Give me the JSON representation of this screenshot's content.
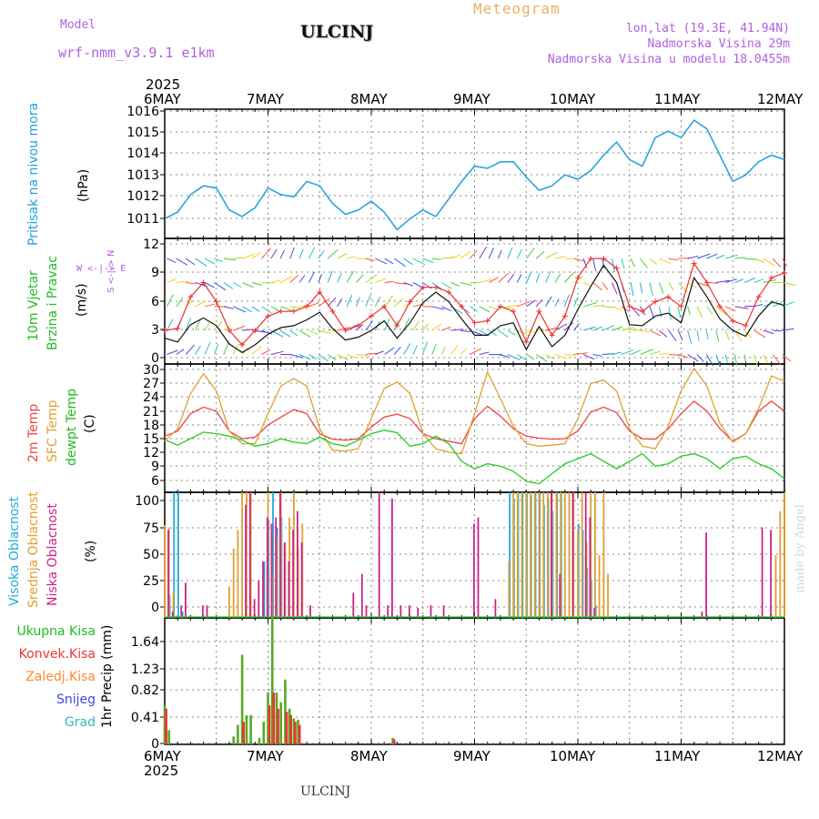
{
  "header": {
    "model_label": "Model",
    "model_name": "wrf-nmm_v3.9.1 e1km",
    "title": "ULCINJ",
    "meteogram": "Meteogram",
    "lonlat": "lon,lat (19.3E, 41.94N)",
    "elevation": "Nadmorska Visina 29m",
    "model_elevation": "Nadmorska Visina u modelu 18.0455m"
  },
  "dates": {
    "year": "2025",
    "days": [
      "6MAY",
      "7MAY",
      "8MAY",
      "9MAY",
      "10MAY",
      "11MAY",
      "12MAY"
    ]
  },
  "labels": {
    "pressure": {
      "name": "Pritisak na nivou mora",
      "unit": "(hPa)"
    },
    "wind": {
      "name1": "10m Vjetar",
      "name2": "Brzina i Pravac",
      "unit": "(m/s)",
      "compass": "W <-|-> E",
      "compass_vertical": "S <-|-> N"
    },
    "temp": {
      "t2m": "2m Temp",
      "sfc": "SFC Temp",
      "dew": "dewpt Temp",
      "unit": "(C)"
    },
    "cloud": {
      "high": "Visoka Oblacnost",
      "mid": "Srednja Oblacnost",
      "low": "Niska Oblacnost",
      "unit": "(%)"
    },
    "precip": {
      "total": "Ukupna Kisa",
      "conv": "Konvek.Kisa",
      "frz": "Zaledj.Kisa",
      "snow": "Snijeg",
      "hail": "Grad",
      "unit": "1hr Precip (mm)"
    },
    "footer": "ULCINJ",
    "madeby": "made by Angel"
  },
  "colors": {
    "pressure": "#1ea0e0",
    "wind_speed": "#111111",
    "wind_gust": "#ee3030",
    "t2m": "#ee4444",
    "sfc": "#e0a030",
    "dew": "#22cc22",
    "cloud_high": "#22aadd",
    "cloud_mid": "#e0a030",
    "cloud_low": "#cc2288",
    "precip_total": "#55aa22",
    "precip_conv": "#ee3333",
    "precip_frz": "#ff8833",
    "precip_snow": "#4444dd",
    "precip_hail": "#33bbbb",
    "label_wind": "#22bb22",
    "label_compass": "#b060e0"
  },
  "chart_data": [
    {
      "type": "line",
      "name": "pressure",
      "x_unit": "hours since 6MAY 00UTC",
      "ylim": [
        1010.2,
        1016.1
      ],
      "yticks": [
        "1011",
        "1012",
        "1013",
        "1014",
        "1015",
        "1016"
      ],
      "series": [
        {
          "name": "Pritisak na nivou mora",
          "x": [
            0,
            3,
            6,
            9,
            12,
            15,
            18,
            21,
            24,
            27,
            30,
            33,
            36,
            39,
            42,
            45,
            48,
            51,
            54,
            57,
            60,
            63,
            66,
            69,
            72,
            75,
            78,
            81,
            84,
            87,
            90,
            93,
            96,
            99,
            102,
            105,
            108,
            111,
            114,
            117,
            120,
            123,
            126,
            129,
            132,
            135,
            138,
            141,
            144
          ],
          "values": [
            1011.1,
            1011.4,
            1012.2,
            1012.6,
            1012.5,
            1011.5,
            1011.2,
            1011.6,
            1012.5,
            1012.2,
            1012.1,
            1012.8,
            1012.6,
            1011.8,
            1011.3,
            1011.5,
            1011.9,
            1011.4,
            1010.6,
            1011.1,
            1011.5,
            1011.2,
            1012.0,
            1012.8,
            1013.5,
            1013.4,
            1013.7,
            1013.7,
            1013.0,
            1012.4,
            1012.6,
            1013.1,
            1012.9,
            1013.3,
            1014.0,
            1014.6,
            1013.8,
            1013.5,
            1014.8,
            1015.1,
            1014.8,
            1015.6,
            1015.2,
            1014.0,
            1012.8,
            1013.1,
            1013.7,
            1014.0,
            1013.8
          ]
        }
      ]
    },
    {
      "type": "line",
      "name": "wind",
      "x_unit": "hours since 6MAY 00UTC",
      "ylim": [
        -0.5,
        12.6
      ],
      "yticks": [
        "0",
        "3",
        "6",
        "9",
        "12"
      ],
      "series": [
        {
          "name": "speed",
          "x": [
            0,
            3,
            6,
            9,
            12,
            15,
            18,
            21,
            24,
            27,
            30,
            33,
            36,
            39,
            42,
            45,
            48,
            51,
            54,
            57,
            60,
            63,
            66,
            69,
            72,
            75,
            78,
            81,
            84,
            87,
            90,
            93,
            96,
            99,
            102,
            105,
            108,
            111,
            114,
            117,
            120,
            123,
            126,
            129,
            132,
            135,
            138,
            141,
            144
          ],
          "values": [
            2.2,
            1.8,
            3.6,
            4.3,
            3.5,
            1.6,
            0.7,
            1.5,
            2.6,
            3.3,
            3.5,
            4.1,
            4.9,
            3.2,
            2.0,
            2.3,
            3.0,
            4.0,
            2.2,
            3.8,
            5.9,
            7.0,
            6.0,
            4.2,
            2.5,
            2.5,
            3.5,
            3.8,
            1.0,
            3.4,
            1.3,
            2.5,
            5.2,
            7.6,
            9.8,
            8.0,
            3.6,
            3.5,
            4.5,
            4.8,
            3.8,
            8.5,
            6.5,
            4.2,
            3.0,
            2.4,
            4.5,
            6.0,
            5.6
          ]
        },
        {
          "name": "gust",
          "x": [
            0,
            3,
            6,
            9,
            12,
            15,
            18,
            21,
            24,
            27,
            30,
            33,
            36,
            39,
            42,
            45,
            48,
            51,
            54,
            57,
            60,
            63,
            66,
            69,
            72,
            75,
            78,
            81,
            84,
            87,
            90,
            93,
            96,
            99,
            102,
            105,
            108,
            111,
            114,
            117,
            120,
            123,
            126,
            129,
            132,
            135,
            138,
            141,
            144
          ],
          "values": [
            3.0,
            3.2,
            6.5,
            8.0,
            6.0,
            3.0,
            1.5,
            3.0,
            4.5,
            5.0,
            5.0,
            5.5,
            7.0,
            5.0,
            3.0,
            3.5,
            4.5,
            5.5,
            3.5,
            6.0,
            7.5,
            7.5,
            7.0,
            5.5,
            3.8,
            4.0,
            5.5,
            5.0,
            1.8,
            5.0,
            2.5,
            4.5,
            8.5,
            10.5,
            10.5,
            9.5,
            5.5,
            5.0,
            6.0,
            6.5,
            5.5,
            10.0,
            8.0,
            5.5,
            4.0,
            3.5,
            6.5,
            8.5,
            9.0
          ]
        }
      ]
    },
    {
      "type": "line",
      "name": "temperature",
      "x_unit": "hours since 6MAY 00UTC",
      "ylim": [
        4.8,
        30.4
      ],
      "yticks": [
        "6",
        "9",
        "12",
        "15",
        "18",
        "21",
        "24",
        "27",
        "30"
      ],
      "series": [
        {
          "name": "2m Temp",
          "x": [
            0,
            3,
            6,
            9,
            12,
            15,
            18,
            21,
            24,
            27,
            30,
            33,
            36,
            39,
            42,
            45,
            48,
            51,
            54,
            57,
            60,
            63,
            66,
            69,
            72,
            75,
            78,
            81,
            84,
            87,
            90,
            93,
            96,
            99,
            102,
            105,
            108,
            111,
            114,
            117,
            120,
            123,
            126,
            129,
            132,
            135,
            138,
            141,
            144
          ],
          "values": [
            16.0,
            17.0,
            20.5,
            21.8,
            21.0,
            17.0,
            15.5,
            15.8,
            18.2,
            19.8,
            21.3,
            20.5,
            16.5,
            15.4,
            15.2,
            15.5,
            17.8,
            19.8,
            20.4,
            19.5,
            16.5,
            15.5,
            15.0,
            14.5,
            19.5,
            22.0,
            20.0,
            17.5,
            16.0,
            15.6,
            15.4,
            15.5,
            17.0,
            20.8,
            21.8,
            20.7,
            17.0,
            15.5,
            15.4,
            17.5,
            20.5,
            23.0,
            21.0,
            17.5,
            15.0,
            16.5,
            21.0,
            23.0,
            21.0
          ]
        },
        {
          "name": "SFC Temp",
          "x": [
            0,
            3,
            6,
            9,
            12,
            15,
            18,
            21,
            24,
            27,
            30,
            33,
            36,
            39,
            42,
            45,
            48,
            51,
            54,
            57,
            60,
            63,
            66,
            69,
            72,
            75,
            78,
            81,
            84,
            87,
            90,
            93,
            96,
            99,
            102,
            105,
            108,
            111,
            114,
            117,
            120,
            123,
            126,
            129,
            132,
            135,
            138,
            141,
            144
          ],
          "values": [
            15.0,
            17.5,
            24.5,
            28.5,
            25.0,
            17.0,
            14.5,
            14.5,
            20.5,
            26.0,
            27.5,
            26.0,
            17.5,
            13.2,
            13.0,
            13.5,
            19.5,
            25.5,
            26.8,
            24.5,
            16.5,
            13.5,
            12.8,
            12.5,
            20.5,
            28.8,
            23.5,
            18.0,
            14.5,
            14.0,
            14.2,
            14.5,
            19.5,
            26.5,
            27.2,
            25.0,
            17.5,
            14.0,
            13.5,
            18.0,
            25.0,
            29.5,
            26.0,
            18.5,
            14.8,
            16.5,
            21.5,
            28.0,
            27.0
          ]
        },
        {
          "name": "dewpt Temp",
          "x": [
            0,
            3,
            6,
            9,
            12,
            15,
            18,
            21,
            24,
            27,
            30,
            33,
            36,
            39,
            42,
            45,
            48,
            51,
            54,
            57,
            60,
            63,
            66,
            69,
            72,
            75,
            78,
            81,
            84,
            87,
            90,
            93,
            96,
            99,
            102,
            105,
            108,
            111,
            114,
            117,
            120,
            123,
            126,
            129,
            132,
            135,
            138,
            141,
            144
          ],
          "values": [
            15.3,
            14.2,
            15.5,
            16.8,
            16.5,
            16.0,
            15.2,
            14.0,
            14.5,
            15.5,
            14.8,
            14.5,
            15.8,
            14.5,
            14.0,
            15.2,
            16.5,
            17.2,
            16.7,
            14.0,
            14.5,
            16.0,
            14.5,
            11.0,
            9.5,
            10.5,
            10.0,
            9.0,
            7.0,
            6.5,
            8.5,
            10.5,
            11.5,
            12.5,
            11.0,
            9.5,
            11.0,
            12.5,
            10.0,
            10.5,
            12.0,
            12.5,
            11.5,
            9.5,
            11.5,
            12.0,
            10.5,
            9.5,
            7.5
          ]
        }
      ]
    },
    {
      "type": "bar",
      "name": "clouds",
      "x_unit": "hours since 6MAY 00UTC",
      "ylim": [
        0,
        100
      ],
      "yticks": [
        "0",
        "25",
        "50",
        "75",
        "100"
      ],
      "series": [
        {
          "name": "Visoka Oblacnost",
          "x": [
            1,
            2,
            3,
            4,
            23,
            24,
            25,
            26,
            27,
            80,
            81,
            82,
            83,
            84,
            85,
            86,
            87,
            88,
            89,
            90,
            91,
            92,
            96,
            97,
            98,
            99,
            100
          ],
          "values": [
            18,
            100,
            100,
            5,
            45,
            78,
            100,
            72,
            80,
            100,
            95,
            100,
            100,
            100,
            98,
            100,
            100,
            90,
            95,
            85,
            100,
            100,
            75,
            70,
            40,
            30,
            10
          ]
        },
        {
          "name": "Srednja Oblacnost",
          "x": [
            0,
            1,
            2,
            15,
            16,
            17,
            18,
            19,
            20,
            24,
            25,
            26,
            27,
            28,
            29,
            30,
            31,
            32,
            80,
            81,
            82,
            83,
            84,
            85,
            86,
            87,
            88,
            89,
            90,
            91,
            92,
            93,
            94,
            95,
            96,
            97,
            98,
            99,
            100,
            101,
            102,
            103,
            142,
            143,
            144
          ],
          "values": [
            74,
            72,
            20,
            25,
            55,
            70,
            100,
            100,
            100,
            100,
            35,
            65,
            100,
            60,
            80,
            100,
            55,
            75,
            45,
            100,
            100,
            100,
            100,
            100,
            100,
            100,
            100,
            100,
            100,
            100,
            100,
            100,
            100,
            100,
            70,
            100,
            60,
            100,
            100,
            50,
            100,
            35,
            50,
            85,
            100
          ]
        },
        {
          "name": "Niska Oblacnost",
          "x": [
            1,
            2,
            4,
            5,
            9,
            10,
            19,
            20,
            21,
            22,
            23,
            24,
            25,
            26,
            27,
            28,
            29,
            30,
            31,
            32,
            34,
            44,
            46,
            47,
            50,
            52,
            53,
            55,
            57,
            59,
            62,
            65,
            72,
            73,
            77,
            90,
            92,
            95,
            98,
            99,
            100,
            125,
            126,
            139,
            141
          ],
          "values": [
            70,
            5,
            10,
            28,
            10,
            10,
            90,
            100,
            15,
            30,
            45,
            80,
            75,
            80,
            100,
            60,
            45,
            70,
            85,
            60,
            10,
            20,
            35,
            10,
            100,
            10,
            95,
            10,
            10,
            8,
            10,
            10,
            75,
            80,
            15,
            100,
            35,
            100,
            100,
            80,
            8,
            5,
            68,
            72,
            70
          ]
        }
      ]
    },
    {
      "type": "bar",
      "name": "precipitation",
      "x_unit": "hours since 6MAY 00UTC",
      "ylim": [
        0,
        1.95
      ],
      "yticks": [
        "0",
        "0.41",
        "0.82",
        "1.23",
        "1.64"
      ],
      "series": [
        {
          "name": "Ukupna Kisa",
          "x": [
            0,
            1,
            16,
            17,
            18,
            19,
            20,
            22,
            23,
            24,
            25,
            26,
            27,
            28,
            29,
            30,
            31,
            53
          ],
          "values": [
            0.6,
            0.22,
            0.12,
            0.3,
            1.38,
            0.45,
            0.45,
            0.1,
            0.35,
            0.8,
            1.95,
            0.8,
            0.65,
            1.0,
            0.55,
            0.4,
            0.38,
            0.1
          ]
        },
        {
          "name": "Konvek.Kisa",
          "x": [
            0,
            18,
            24,
            25,
            26,
            28,
            29,
            30,
            31,
            53
          ],
          "values": [
            0.55,
            0.35,
            0.6,
            0.8,
            0.55,
            0.5,
            0.45,
            0.35,
            0.3,
            0.08
          ]
        }
      ]
    }
  ]
}
